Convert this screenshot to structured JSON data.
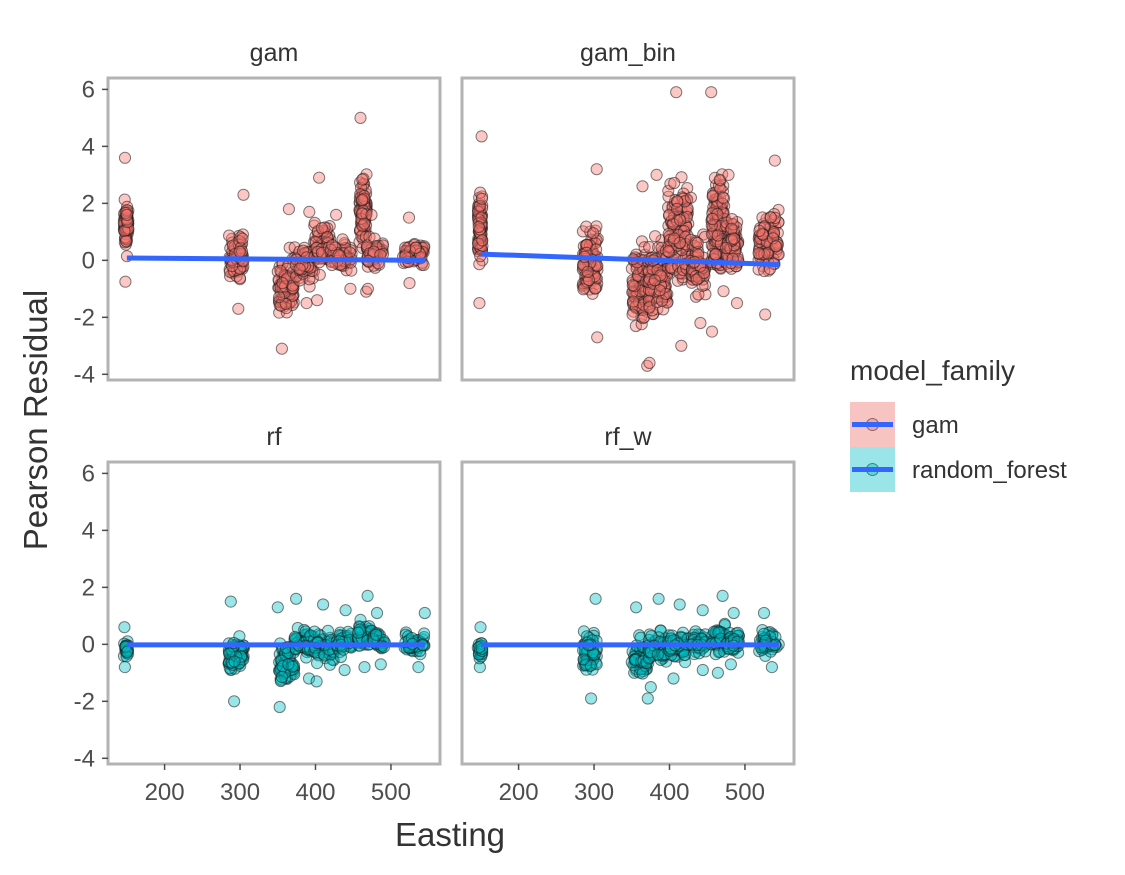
{
  "chart_data": {
    "type": "scatter",
    "xlabel": "Easting",
    "ylabel": "Pearson Residual",
    "xlim": [
      125,
      565
    ],
    "ylim": [
      -4.2,
      6.4
    ],
    "x_ticks": [
      200,
      300,
      400,
      500
    ],
    "y_ticks": [
      -4,
      -2,
      0,
      2,
      4,
      6
    ],
    "grid": false,
    "legend": {
      "title": "model_family",
      "position": "right",
      "entries": [
        {
          "label": "gam",
          "fill": "#F8766D",
          "bg": "#F8C4C2"
        },
        {
          "label": "random_forest",
          "fill": "#00BFC4",
          "bg": "#99E5E7"
        }
      ]
    },
    "trend_color": "#3366FF",
    "facets": [
      {
        "name": "gam",
        "family": "gam",
        "trend": [
          [
            150,
            0.08
          ],
          [
            545,
            0.0
          ]
        ],
        "clusters": [
          {
            "x": [
              146,
              152
            ],
            "min": -0.75,
            "max": 3.6
          },
          {
            "x": [
              285,
              305
            ],
            "min": -1.7,
            "max": 2.3
          },
          {
            "x": [
              350,
              372
            ],
            "min": -3.1,
            "max": 1.8
          },
          {
            "x": [
              372,
              398
            ],
            "min": -1.5,
            "max": 1.7
          },
          {
            "x": [
              398,
              420
            ],
            "min": -1.4,
            "max": 2.9
          },
          {
            "x": [
              420,
              448
            ],
            "min": -1.0,
            "max": 1.6
          },
          {
            "x": [
              458,
              468
            ],
            "min": -1.1,
            "max": 5.0
          },
          {
            "x": [
              468,
              490
            ],
            "min": -1.0,
            "max": 1.6
          },
          {
            "x": [
              515,
              545
            ],
            "min": -0.8,
            "max": 1.5
          }
        ]
      },
      {
        "name": "gam_bin",
        "family": "gam",
        "trend": [
          [
            150,
            0.22
          ],
          [
            545,
            -0.15
          ]
        ],
        "clusters": [
          {
            "x": [
              146,
              152
            ],
            "min": -1.5,
            "max": 4.35
          },
          {
            "x": [
              285,
              305
            ],
            "min": -2.7,
            "max": 3.2
          },
          {
            "x": [
              350,
              372
            ],
            "min": -3.7,
            "max": 2.6
          },
          {
            "x": [
              372,
              398
            ],
            "min": -3.6,
            "max": 3.0
          },
          {
            "x": [
              398,
              425
            ],
            "min": -3.0,
            "max": 5.9
          },
          {
            "x": [
              428,
              448
            ],
            "min": -2.2,
            "max": 2.2
          },
          {
            "x": [
              455,
              475
            ],
            "min": -2.5,
            "max": 5.9
          },
          {
            "x": [
              475,
              492
            ],
            "min": -1.5,
            "max": 3.0
          },
          {
            "x": [
              518,
              545
            ],
            "min": -1.9,
            "max": 3.5
          }
        ]
      },
      {
        "name": "rf",
        "family": "random_forest",
        "trend": [
          [
            150,
            -0.02
          ],
          [
            545,
            -0.02
          ]
        ],
        "clusters": [
          {
            "x": [
              146,
              152
            ],
            "min": -0.8,
            "max": 0.6
          },
          {
            "x": [
              285,
              305
            ],
            "min": -2.0,
            "max": 1.5
          },
          {
            "x": [
              350,
              372
            ],
            "min": -2.2,
            "max": 1.3
          },
          {
            "x": [
              372,
              398
            ],
            "min": -1.2,
            "max": 1.6
          },
          {
            "x": [
              398,
              425
            ],
            "min": -1.3,
            "max": 1.4
          },
          {
            "x": [
              428,
              448
            ],
            "min": -0.9,
            "max": 1.2
          },
          {
            "x": [
              455,
              475
            ],
            "min": -0.8,
            "max": 1.7
          },
          {
            "x": [
              475,
              492
            ],
            "min": -0.7,
            "max": 1.1
          },
          {
            "x": [
              518,
              545
            ],
            "min": -0.8,
            "max": 1.1
          }
        ]
      },
      {
        "name": "rf_w",
        "family": "random_forest",
        "trend": [
          [
            150,
            -0.02
          ],
          [
            545,
            -0.02
          ]
        ],
        "clusters": [
          {
            "x": [
              146,
              152
            ],
            "min": -0.8,
            "max": 0.6
          },
          {
            "x": [
              285,
              305
            ],
            "min": -1.9,
            "max": 1.6
          },
          {
            "x": [
              350,
              372
            ],
            "min": -1.9,
            "max": 1.3
          },
          {
            "x": [
              372,
              398
            ],
            "min": -1.5,
            "max": 1.6
          },
          {
            "x": [
              398,
              425
            ],
            "min": -1.2,
            "max": 1.4
          },
          {
            "x": [
              428,
              448
            ],
            "min": -0.9,
            "max": 1.2
          },
          {
            "x": [
              455,
              475
            ],
            "min": -1.0,
            "max": 1.7
          },
          {
            "x": [
              475,
              492
            ],
            "min": -0.7,
            "max": 1.1
          },
          {
            "x": [
              518,
              545
            ],
            "min": -0.8,
            "max": 1.1
          }
        ]
      }
    ]
  }
}
